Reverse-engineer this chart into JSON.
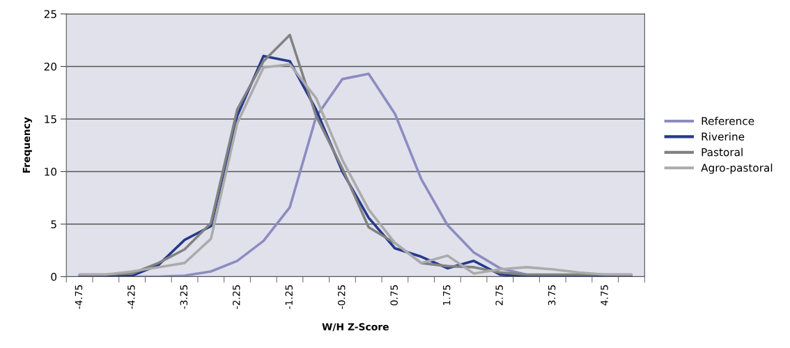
{
  "chart_data": {
    "type": "line",
    "xlabel": "W/H Z-Score",
    "ylabel": "Frequency",
    "categories": [
      "-4.75",
      null,
      "-4.25",
      null,
      "-3.25",
      null,
      "-2.25",
      null,
      "-1.25",
      null,
      "-0.25",
      null,
      "0.75",
      null,
      "1.75",
      null,
      "2.75",
      null,
      "3.75",
      null,
      "4.75",
      null
    ],
    "series": [
      {
        "name": "Reference",
        "color": "#8c8cc0",
        "values": [
          0,
          0,
          0,
          0,
          0.1,
          0.5,
          1.5,
          3.4,
          6.6,
          15.2,
          18.8,
          19.3,
          15.5,
          9.3,
          4.9,
          2.3,
          0.8,
          0.2,
          0,
          0,
          0,
          0
        ]
      },
      {
        "name": "Riverine",
        "color": "#253a8c",
        "values": [
          0,
          0,
          0.1,
          1.1,
          3.5,
          4.8,
          15.3,
          21.0,
          20.5,
          15.9,
          10.0,
          5.6,
          2.7,
          1.9,
          0.8,
          1.5,
          0.2,
          0,
          0,
          0,
          0,
          0
        ]
      },
      {
        "name": "Pastoral",
        "color": "#828282",
        "values": [
          0.2,
          0.2,
          0.3,
          1.3,
          2.6,
          5.1,
          15.9,
          20.5,
          23.0,
          15.3,
          10.3,
          4.7,
          3.2,
          1.3,
          1.0,
          0.9,
          0.4,
          0.2,
          0.2,
          0.2,
          0.2,
          0.2
        ]
      },
      {
        "name": "Agro-pastoral",
        "color": "#ababab",
        "values": [
          0.2,
          0.2,
          0.5,
          0.9,
          1.3,
          3.6,
          14.6,
          19.9,
          20.2,
          17.0,
          11.1,
          6.4,
          3.2,
          1.3,
          2.0,
          0.3,
          0.7,
          0.9,
          0.7,
          0.4,
          0.2,
          0.2
        ]
      }
    ],
    "ylim": [
      0,
      25
    ],
    "yticks": [
      0,
      5,
      10,
      15,
      20,
      25
    ],
    "grid": "y",
    "legend": "right",
    "line_style": "solid",
    "marker": "none"
  }
}
